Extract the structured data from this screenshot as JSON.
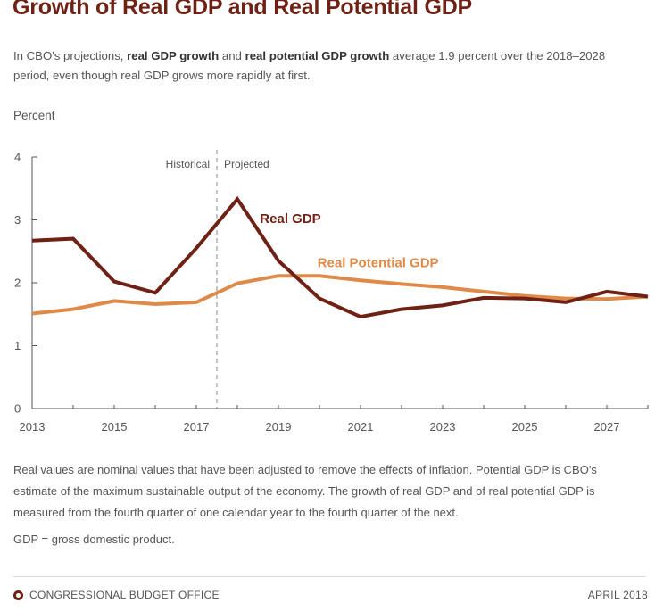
{
  "header": {
    "title": "Growth of Real GDP and Real Potential GDP",
    "subtitle_part1": "In CBO's projections, ",
    "subtitle_bold1": "real GDP growth",
    "subtitle_part2": " and ",
    "subtitle_bold2": "real potential GDP growth",
    "subtitle_part3": " average 1.9 percent over the 2018–2028 period, even though real GDP grows more rapidly at first."
  },
  "notes": {
    "text": "Real values are nominal values that have been adjusted to remove the effects of inflation. Potential GDP is CBO's estimate of the maximum sustainable output of the economy. The growth of real GDP and of real potential GDP is measured from the fourth quarter of one calendar year to the fourth quarter of the next.",
    "abbreviation": "GDP = gross domestic product."
  },
  "footer": {
    "agency": "CONGRESSIONAL BUDGET OFFICE",
    "date": "APRIL 2018"
  },
  "colors": {
    "title": "#6e2114",
    "real_gdp": "#6e2114",
    "real_potential_gdp": "#e08a4a",
    "axis": "#555555"
  },
  "chart_data": {
    "type": "line",
    "ylabel": "Percent",
    "xlabel": "",
    "ylim": [
      0,
      4
    ],
    "xlim": [
      2013,
      2028
    ],
    "y_ticks": [
      "0",
      "1",
      "2",
      "3",
      "4"
    ],
    "x_ticks": [
      "2013",
      "2015",
      "2017",
      "2019",
      "2021",
      "2023",
      "2025",
      "2027"
    ],
    "grid": false,
    "period_divider_x": 2017.5,
    "period_labels": {
      "historical": "Historical",
      "projected": "Projected"
    },
    "x": [
      2013,
      2014,
      2015,
      2016,
      2017,
      2018,
      2019,
      2020,
      2021,
      2022,
      2023,
      2024,
      2025,
      2026,
      2027,
      2028
    ],
    "series": [
      {
        "name": "Real GDP",
        "color": "#6e2114",
        "values": [
          2.67,
          2.7,
          2.02,
          1.84,
          2.55,
          3.33,
          2.35,
          1.75,
          1.46,
          1.58,
          1.64,
          1.76,
          1.75,
          1.69,
          1.86,
          1.78
        ]
      },
      {
        "name": "Real Potential GDP",
        "color": "#e08a4a",
        "values": [
          1.51,
          1.58,
          1.71,
          1.66,
          1.69,
          1.99,
          2.11,
          2.11,
          2.04,
          1.98,
          1.93,
          1.86,
          1.79,
          1.75,
          1.74,
          1.78
        ]
      }
    ]
  }
}
